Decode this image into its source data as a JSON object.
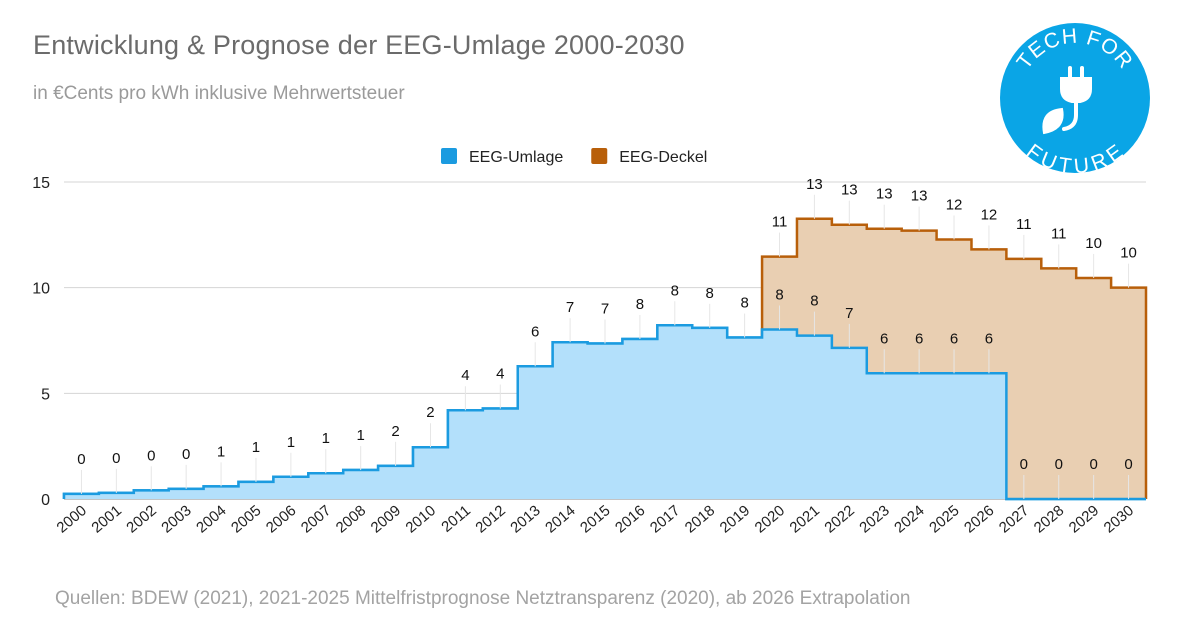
{
  "header": {
    "title": "Entwicklung & Prognose der EEG-Umlage 2000-2030",
    "subtitle": "in €Cents pro kWh inklusive Mehrwertsteuer"
  },
  "logo": {
    "top_text": "TECH FOR",
    "bottom_text": "FUTURE",
    "icon": "plug-leaf-icon",
    "color": "#0aa5e6"
  },
  "footer": {
    "source": "Quellen: BDEW (2021), 2021-2025 Mittelfristprognose Netztransparenz (2020), ab 2026 Extrapolation"
  },
  "chart_data": {
    "type": "area",
    "step": true,
    "x": [
      "2000",
      "2001",
      "2002",
      "2003",
      "2004",
      "2005",
      "2006",
      "2007",
      "2008",
      "2009",
      "2010",
      "2011",
      "2012",
      "2013",
      "2014",
      "2015",
      "2016",
      "2017",
      "2018",
      "2019",
      "2020",
      "2021",
      "2022",
      "2023",
      "2024",
      "2025",
      "2026",
      "2027",
      "2028",
      "2029",
      "2030"
    ],
    "ylim": [
      0,
      15
    ],
    "yticks": [
      0,
      5,
      10,
      15
    ],
    "grid": true,
    "legend_position": "top-center",
    "series": [
      {
        "name": "EEG-Umlage",
        "color": "#1b9be0",
        "fill": "#b3e0fb",
        "values": [
          0.24,
          0.29,
          0.41,
          0.48,
          0.6,
          0.81,
          1.05,
          1.22,
          1.37,
          1.57,
          2.45,
          4.2,
          4.28,
          6.28,
          7.42,
          7.36,
          7.57,
          8.22,
          8.1,
          7.64,
          8.02,
          7.73,
          7.15,
          5.95,
          5.95,
          5.95,
          5.95,
          0,
          0,
          0,
          0
        ],
        "labels": [
          "0",
          "0",
          "0",
          "0",
          "1",
          "1",
          "1",
          "1",
          "1",
          "2",
          "2",
          "4",
          "4",
          "6",
          "7",
          "7",
          "8",
          "8",
          "8",
          "8",
          "8",
          "8",
          "7",
          "6",
          "6",
          "6",
          "6",
          "0",
          "0",
          "0",
          "0"
        ]
      },
      {
        "name": "EEG-Deckel",
        "color": "#b85f0a",
        "fill": "#e9cfb2",
        "values": [
          null,
          null,
          null,
          null,
          null,
          null,
          null,
          null,
          null,
          null,
          null,
          null,
          null,
          null,
          null,
          null,
          null,
          null,
          null,
          null,
          11.47,
          13.26,
          12.98,
          12.79,
          12.7,
          12.28,
          11.81,
          11.36,
          10.91,
          10.46,
          10.0
        ],
        "labels": [
          "",
          "",
          "",
          "",
          "",
          "",
          "",
          "",
          "",
          "",
          "",
          "",
          "",
          "",
          "",
          "",
          "",
          "",
          "",
          "",
          "11",
          "13",
          "13",
          "13",
          "13",
          "12",
          "12",
          "11",
          "11",
          "10",
          "10"
        ]
      }
    ]
  }
}
